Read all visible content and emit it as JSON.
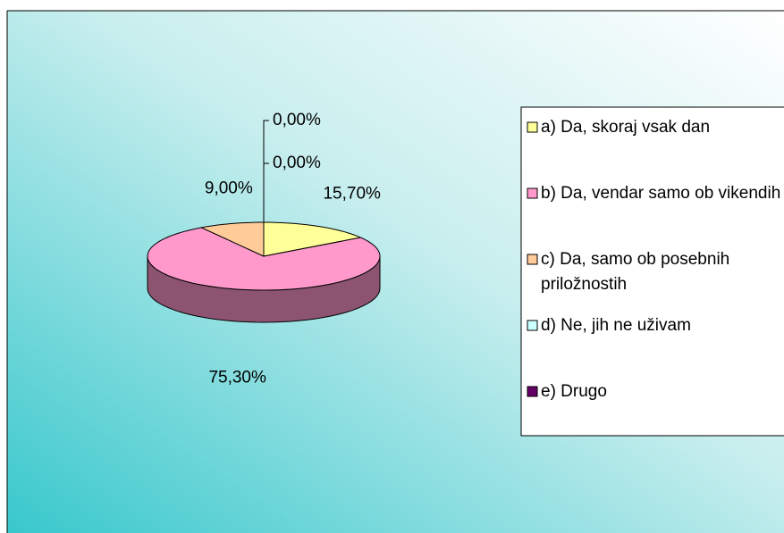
{
  "chart_data": {
    "type": "pie",
    "categories": [
      "a) Da, skoraj vsak dan",
      "b) Da, vendar samo ob vikendih",
      "c) Da, samo ob posebnih priložnostih",
      "d) Ne, jih ne uživam",
      "e) Drugo"
    ],
    "values": [
      15.7,
      75.3,
      9,
      0,
      0
    ],
    "value_labels": [
      "15,70%",
      "75,30%",
      "9,00%",
      "0,00%",
      "0,00%"
    ],
    "colors": [
      "#ffff99",
      "#ff99cc",
      "#ffcc99",
      "#ccffff",
      "#660066"
    ],
    "legend": "right"
  }
}
